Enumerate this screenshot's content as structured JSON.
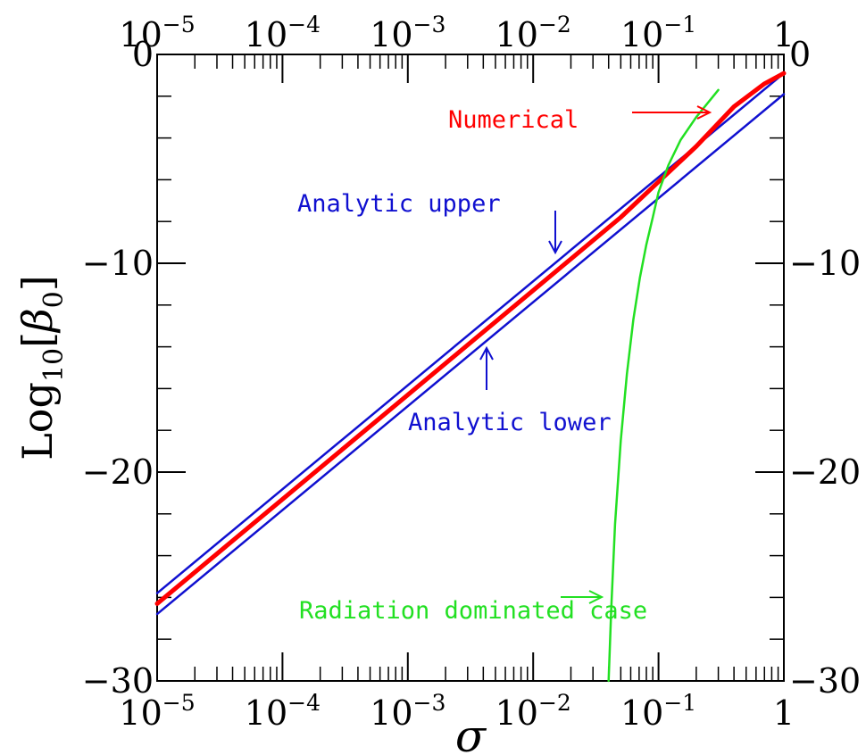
{
  "chart_data": {
    "type": "line",
    "xscale": "log",
    "xlim": [
      1e-05,
      1
    ],
    "ylim": [
      -30,
      0
    ],
    "xlabel": "σ",
    "ylabel": "Log10[β0]",
    "ylabel_main": "Log",
    "ylabel_sub": "10",
    "ylabel_bracket_open": "[",
    "ylabel_beta": "β",
    "ylabel_beta_sub": "0",
    "ylabel_bracket_close": "]",
    "x_ticks": [
      {
        "value": 1e-05,
        "base": "10",
        "exp": "−5"
      },
      {
        "value": 0.0001,
        "base": "10",
        "exp": "−4"
      },
      {
        "value": 0.001,
        "base": "10",
        "exp": "−3"
      },
      {
        "value": 0.01,
        "base": "10",
        "exp": "−2"
      },
      {
        "value": 0.1,
        "base": "10",
        "exp": "−1"
      },
      {
        "value": 1,
        "base": "1",
        "exp": ""
      }
    ],
    "y_ticks": [
      {
        "value": 0,
        "label": "0"
      },
      {
        "value": -10,
        "label": "−10"
      },
      {
        "value": -20,
        "label": "−20"
      },
      {
        "value": -30,
        "label": "−30"
      }
    ],
    "series": [
      {
        "name": "Analytic upper",
        "color": "#1010d0",
        "width": 2.5,
        "x": [
          1e-05,
          1
        ],
        "y": [
          -25.8,
          -0.9
        ]
      },
      {
        "name": "Analytic lower",
        "color": "#1010d0",
        "width": 2.5,
        "x": [
          1e-05,
          1
        ],
        "y": [
          -26.8,
          -1.9
        ]
      },
      {
        "name": "Numerical",
        "color": "#ff0000",
        "width": 5,
        "x": [
          1e-05,
          0.0001,
          0.001,
          0.01,
          0.05,
          0.1,
          0.2,
          0.4,
          0.7,
          1
        ],
        "y": [
          -26.3,
          -21.3,
          -16.3,
          -11.3,
          -7.8,
          -6.1,
          -4.4,
          -2.5,
          -1.4,
          -0.9
        ]
      },
      {
        "name": "Radiation dominated case",
        "color": "#22e022",
        "width": 2.5,
        "x": [
          0.04,
          0.042,
          0.045,
          0.05,
          0.056,
          0.063,
          0.071,
          0.08,
          0.09,
          0.1,
          0.12,
          0.15,
          0.2,
          0.3
        ],
        "y": [
          -30,
          -26.5,
          -22.5,
          -18.5,
          -15.3,
          -12.7,
          -10.7,
          -9.1,
          -7.8,
          -6.6,
          -5.3,
          -4.1,
          -3.0,
          -1.7
        ]
      }
    ],
    "annotations": [
      {
        "text": "Numerical",
        "color": "#ff0000"
      },
      {
        "text": "Analytic upper",
        "color": "#1010d0"
      },
      {
        "text": "Analytic lower",
        "color": "#1010d0"
      },
      {
        "text": "Radiation dominated case",
        "color": "#22e022"
      }
    ]
  }
}
